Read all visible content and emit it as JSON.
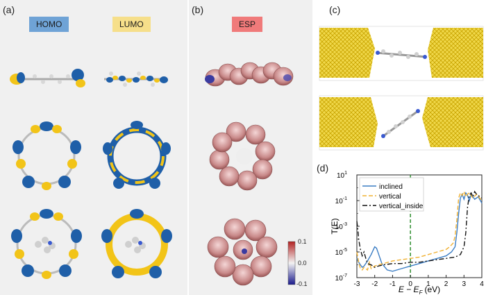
{
  "panels": {
    "a": {
      "label": "(a)",
      "homo_tag": "HOMO",
      "lumo_tag": "LUMO"
    },
    "b": {
      "label": "(b)",
      "esp_tag": "ESP",
      "colorbar_ticks": [
        "0.1",
        "0.0",
        "-0.1"
      ]
    },
    "c": {
      "label": "(c)"
    },
    "d": {
      "label": "(d)"
    }
  },
  "colors": {
    "homo_bg": "#6fa3d6",
    "lumo_bg": "#f6df8a",
    "esp_bg": "#f07a7a",
    "orbital_blue": "#1f5fa8",
    "orbital_yellow": "#f2c418",
    "gold": "#e8c40a",
    "inclined": "#3b7dc4",
    "vertical": "#f0b030",
    "vertical_inside": "#111111",
    "ef_line": "#2f8f2f"
  },
  "chart_data": {
    "type": "line",
    "title": "",
    "xlabel_main": "E − E",
    "xlabel_sub": "F",
    "xlabel_unit": "(eV)",
    "ylabel": "T(E)",
    "xlim": [
      -3,
      4
    ],
    "ylim_log10": [
      -7,
      1
    ],
    "x_ticks": [
      "-3",
      "-2",
      "-1",
      "0",
      "1",
      "2",
      "3",
      "4"
    ],
    "y_ticks": [
      {
        "base": "10",
        "exp": "1"
      },
      {
        "base": "10",
        "exp": "-1"
      },
      {
        "base": "10",
        "exp": "-3"
      },
      {
        "base": "10",
        "exp": "-5"
      },
      {
        "base": "10",
        "exp": "-7"
      }
    ],
    "fermi_level_x": 0,
    "legend_position": "top-left",
    "series": [
      {
        "name": "inclined",
        "style": "solid",
        "x": [
          -3.0,
          -2.9,
          -2.8,
          -2.7,
          -2.6,
          -2.4,
          -2.2,
          -2.1,
          -2.0,
          -1.9,
          -1.8,
          -1.6,
          -1.3,
          -1.0,
          -0.5,
          0.0,
          0.5,
          1.0,
          1.5,
          2.0,
          2.3,
          2.5,
          2.6,
          2.7,
          2.8,
          2.9,
          3.0,
          3.1,
          3.2,
          3.3,
          3.4,
          3.6,
          3.8,
          4.0
        ],
        "y": [
          -5.5,
          -5.8,
          -6.0,
          -6.2,
          -6.1,
          -5.7,
          -5.2,
          -4.9,
          -4.6,
          -4.7,
          -5.1,
          -5.9,
          -6.4,
          -6.5,
          -6.3,
          -6.1,
          -5.9,
          -5.7,
          -5.5,
          -5.3,
          -5.0,
          -4.6,
          -3.5,
          -2.0,
          -0.8,
          -0.5,
          -0.9,
          -0.4,
          -0.6,
          -1.0,
          -0.5,
          -0.9,
          -0.7,
          -1.2
        ]
      },
      {
        "name": "vertical",
        "style": "dashed",
        "x": [
          -3.0,
          -2.9,
          -2.8,
          -2.7,
          -2.6,
          -2.4,
          -2.3,
          -2.2,
          -2.0,
          -1.8,
          -1.5,
          -1.0,
          -0.5,
          0.0,
          0.5,
          1.0,
          1.5,
          2.0,
          2.2,
          2.4,
          2.5,
          2.6,
          2.7,
          2.8,
          2.9,
          3.0,
          3.1,
          3.2,
          3.3,
          3.5,
          3.7,
          4.0
        ],
        "y": [
          -5.0,
          -5.8,
          -6.3,
          -6.4,
          -6.2,
          -6.4,
          -5.8,
          -6.3,
          -6.1,
          -6.0,
          -5.9,
          -5.7,
          -5.6,
          -5.5,
          -5.4,
          -5.2,
          -5.0,
          -4.8,
          -4.6,
          -4.3,
          -3.8,
          -2.5,
          -0.8,
          -0.4,
          -0.6,
          -0.3,
          -0.7,
          -0.5,
          -0.4,
          -0.8,
          -0.5,
          -1.0
        ]
      },
      {
        "name": "vertical_inside",
        "style": "dashdot",
        "x": [
          -3.0,
          -2.95,
          -2.9,
          -2.8,
          -2.7,
          -2.6,
          -2.5,
          -2.4,
          -2.2,
          -2.0,
          -1.8,
          -1.5,
          -1.0,
          -0.5,
          0.0,
          0.5,
          1.0,
          1.5,
          2.0,
          2.5,
          2.8,
          3.0,
          3.1,
          3.2,
          3.3,
          3.4,
          3.5,
          3.6,
          3.7,
          3.8,
          4.0
        ],
        "y": [
          -2.6,
          -3.2,
          -4.0,
          -4.8,
          -5.3,
          -5.0,
          -5.5,
          -5.9,
          -6.0,
          -6.2,
          -6.1,
          -6.0,
          -5.9,
          -5.9,
          -5.8,
          -5.8,
          -5.7,
          -5.6,
          -5.5,
          -5.4,
          -5.2,
          -4.6,
          -3.5,
          -1.5,
          -0.6,
          -0.4,
          -0.7,
          -0.3,
          -0.5,
          -0.6,
          -0.8
        ]
      }
    ]
  }
}
